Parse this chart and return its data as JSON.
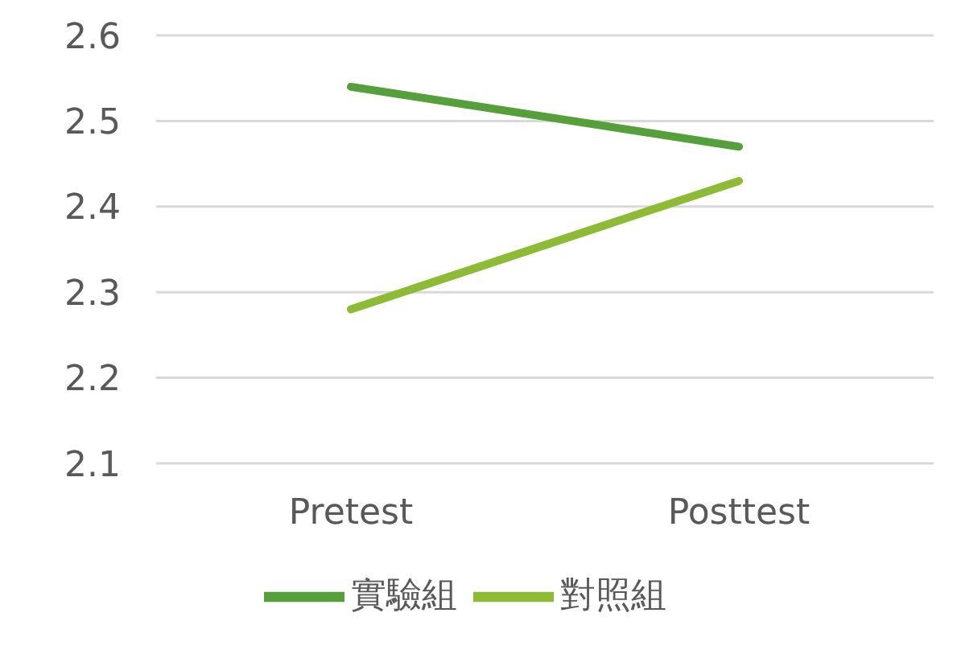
{
  "chart_data": {
    "type": "line",
    "categories": [
      "Pretest",
      "Posttest"
    ],
    "series": [
      {
        "name": "實驗組",
        "color": "#55a03a",
        "values": [
          2.54,
          2.47
        ]
      },
      {
        "name": "對照組",
        "color": "#8dbb35",
        "values": [
          2.28,
          2.43
        ]
      }
    ],
    "ylim": [
      2.1,
      2.6
    ],
    "yticks": [
      2.1,
      2.2,
      2.3,
      2.4,
      2.5,
      2.6
    ],
    "grid": "y",
    "legend": "bottom",
    "marker": "none",
    "line_style": "solid"
  }
}
